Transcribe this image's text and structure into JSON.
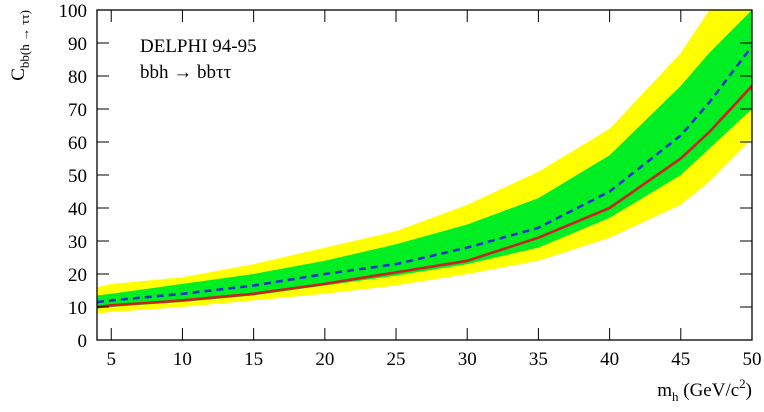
{
  "chart_data": {
    "type": "band-line",
    "annotations": [
      "DELPHI 94-95",
      "bbh → bbττ"
    ],
    "y_label": {
      "main": "C",
      "sub": "bb(h → ττ)"
    },
    "x_label": {
      "main": "m",
      "sub": "h",
      "unit": " (GeV/c",
      "sup": "2",
      "close": ")"
    },
    "x": [
      4,
      5,
      10,
      15,
      20,
      25,
      30,
      35,
      40,
      45,
      47,
      50
    ],
    "bands": [
      {
        "color": "#ffff00",
        "lower": [
          8,
          8.5,
          10,
          12,
          14,
          16.5,
          20,
          24,
          31,
          41,
          48,
          61
        ],
        "upper": [
          16,
          17,
          19,
          23,
          28,
          33,
          41,
          51,
          64,
          87,
          100,
          100
        ]
      },
      {
        "color": "#00ee22",
        "lower": [
          9.5,
          10,
          11.5,
          13.5,
          16.5,
          19.5,
          23,
          28,
          37,
          50,
          58,
          70
        ],
        "upper": [
          13.5,
          14,
          17,
          20,
          24,
          29,
          35,
          43,
          56,
          77,
          87,
          100
        ]
      }
    ],
    "series": [
      {
        "color": "#2233cc",
        "dash": true,
        "values": [
          11.5,
          12,
          14,
          16.5,
          20,
          23,
          28,
          34,
          45,
          62,
          72,
          89
        ]
      },
      {
        "color": "#cc2222",
        "dash": false,
        "values": [
          10,
          10.5,
          12,
          14,
          17,
          20.5,
          24,
          31,
          40,
          55,
          63,
          77
        ]
      }
    ],
    "xlim": [
      4,
      50
    ],
    "xticks": [
      5,
      10,
      15,
      20,
      25,
      30,
      35,
      40,
      45,
      50
    ],
    "ylim": [
      0,
      100
    ],
    "yticks": [
      0,
      10,
      20,
      30,
      40,
      50,
      60,
      70,
      80,
      90,
      100
    ]
  }
}
